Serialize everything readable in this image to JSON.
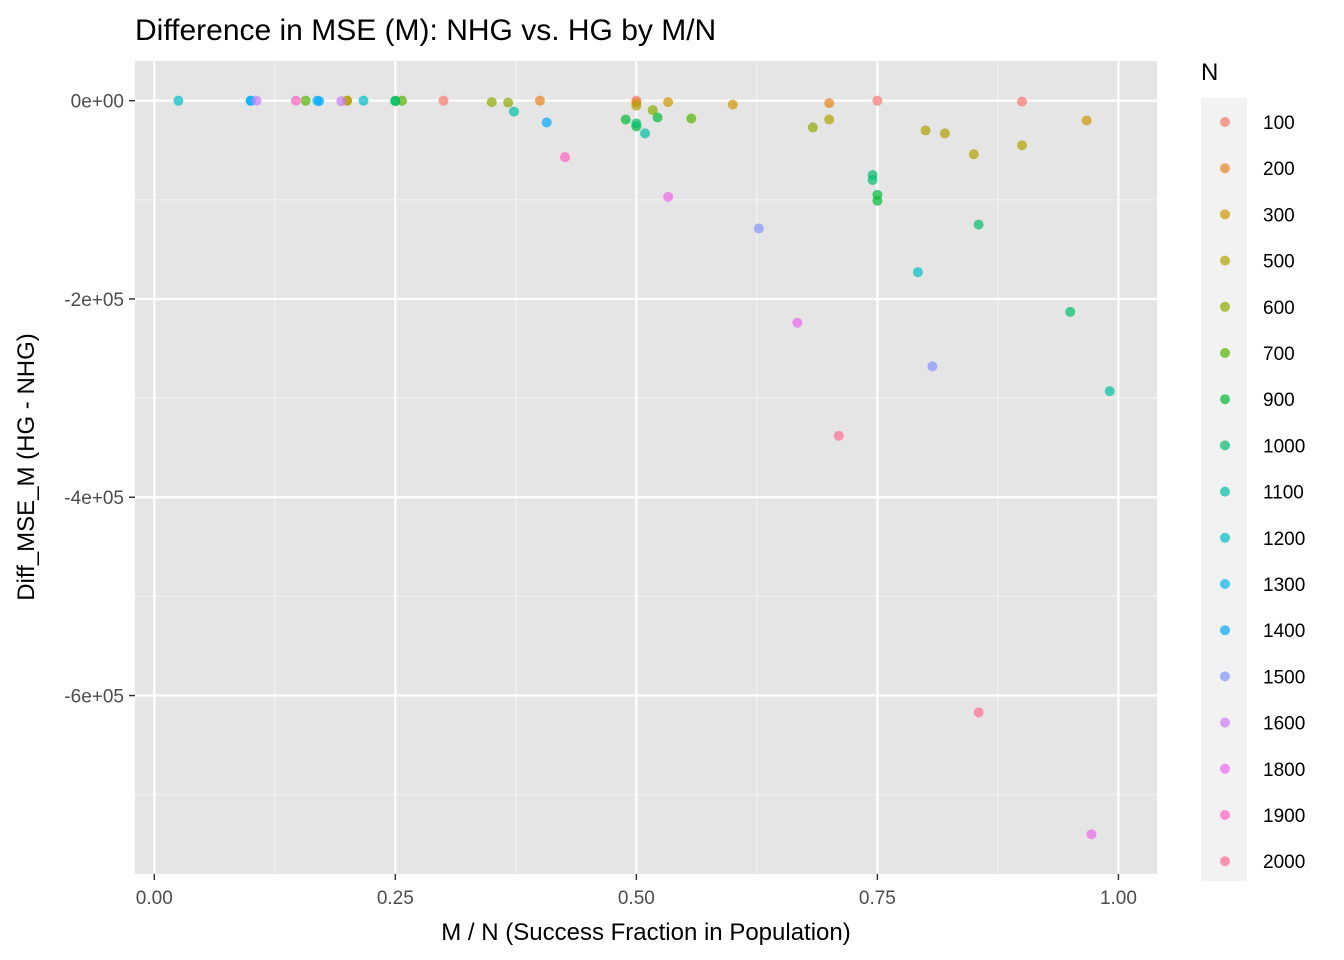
{
  "chart_data": {
    "type": "scatter",
    "title": "Difference in MSE (M): NHG vs. HG by M/N",
    "xlabel": "M / N (Success Fraction in Population)",
    "ylabel": "Diff_MSE_M (HG - NHG)",
    "xlim": [
      -0.02,
      1.04
    ],
    "ylim": [
      -780000,
      40000
    ],
    "x_ticks": [
      0.0,
      0.25,
      0.5,
      0.75,
      1.0
    ],
    "x_tick_labels": [
      "0.00",
      "0.25",
      "0.50",
      "0.75",
      "1.00"
    ],
    "y_ticks": [
      0,
      -200000,
      -400000,
      -600000
    ],
    "y_tick_labels": [
      "0e+00",
      "-2e+05",
      "-4e+05",
      "-6e+05"
    ],
    "grid": true,
    "panel_background": "#e5e5e5",
    "legend": {
      "title": "N",
      "placement": "right"
    },
    "series": [
      {
        "name": "100",
        "color": "#F8766D",
        "points": [
          [
            0.3,
            0
          ],
          [
            0.5,
            0
          ],
          [
            0.75,
            0
          ],
          [
            0.9,
            -1000
          ]
        ]
      },
      {
        "name": "200",
        "color": "#E7851E",
        "points": [
          [
            0.4,
            0
          ],
          [
            0.5,
            -2000
          ],
          [
            0.7,
            -2500
          ]
        ]
      },
      {
        "name": "300",
        "color": "#D09400",
        "points": [
          [
            0.2,
            0
          ],
          [
            0.533,
            -1500
          ],
          [
            0.6,
            -4000
          ],
          [
            0.967,
            -20000
          ]
        ]
      },
      {
        "name": "500",
        "color": "#B2A100",
        "points": [
          [
            0.2,
            0
          ],
          [
            0.5,
            -5000
          ],
          [
            0.7,
            -19000
          ],
          [
            0.8,
            -30000
          ],
          [
            0.82,
            -33000
          ],
          [
            0.85,
            -54000
          ],
          [
            0.9,
            -45000
          ]
        ]
      },
      {
        "name": "600",
        "color": "#8BAB00",
        "points": [
          [
            0.35,
            -1500
          ],
          [
            0.367,
            -2000
          ],
          [
            0.517,
            -9500
          ],
          [
            0.683,
            -27000
          ]
        ]
      },
      {
        "name": "700",
        "color": "#55B400",
        "points": [
          [
            0.157,
            0
          ],
          [
            0.257,
            0
          ],
          [
            0.557,
            -18000
          ]
        ]
      },
      {
        "name": "900",
        "color": "#00BA38",
        "points": [
          [
            0.25,
            0
          ],
          [
            0.489,
            -19000
          ],
          [
            0.5,
            -26000
          ],
          [
            0.522,
            -17000
          ],
          [
            0.75,
            -95000
          ],
          [
            0.75,
            -101000
          ]
        ]
      },
      {
        "name": "1000",
        "color": "#00BE6C",
        "points": [
          [
            0.25,
            -500
          ],
          [
            0.5,
            -23000
          ],
          [
            0.745,
            -75000
          ],
          [
            0.745,
            -80000
          ],
          [
            0.855,
            -125000
          ],
          [
            0.95,
            -213000
          ]
        ]
      },
      {
        "name": "1100",
        "color": "#00C1A3",
        "points": [
          [
            0.373,
            -11000
          ],
          [
            0.509,
            -33000
          ],
          [
            0.991,
            -293000
          ]
        ]
      },
      {
        "name": "1200",
        "color": "#00BFC4",
        "points": [
          [
            0.025,
            0
          ],
          [
            0.217,
            0
          ],
          [
            0.792,
            -173000
          ]
        ]
      },
      {
        "name": "1300",
        "color": "#00B8E7",
        "points": [
          [
            0.1,
            0
          ],
          [
            0.169,
            0
          ]
        ]
      },
      {
        "name": "1400",
        "color": "#00A9FF",
        "points": [
          [
            0.1,
            0
          ],
          [
            0.171,
            -500
          ],
          [
            0.407,
            -22000
          ]
        ]
      },
      {
        "name": "1500",
        "color": "#8494FF",
        "points": [
          [
            0.627,
            -129000
          ],
          [
            0.807,
            -268000
          ]
        ]
      },
      {
        "name": "1600",
        "color": "#C77CFF",
        "points": [
          [
            0.106,
            0
          ],
          [
            0.194,
            -500
          ]
        ]
      },
      {
        "name": "1800",
        "color": "#ED68ED",
        "points": [
          [
            0.533,
            -97000
          ],
          [
            0.667,
            -224000
          ],
          [
            0.972,
            -740000
          ]
        ]
      },
      {
        "name": "1900",
        "color": "#FF61C3",
        "points": [
          [
            0.147,
            0
          ],
          [
            0.426,
            -57000
          ]
        ]
      },
      {
        "name": "2000",
        "color": "#FF6C91",
        "points": [
          [
            0.71,
            -338000
          ],
          [
            0.855,
            -617000
          ]
        ]
      }
    ]
  }
}
